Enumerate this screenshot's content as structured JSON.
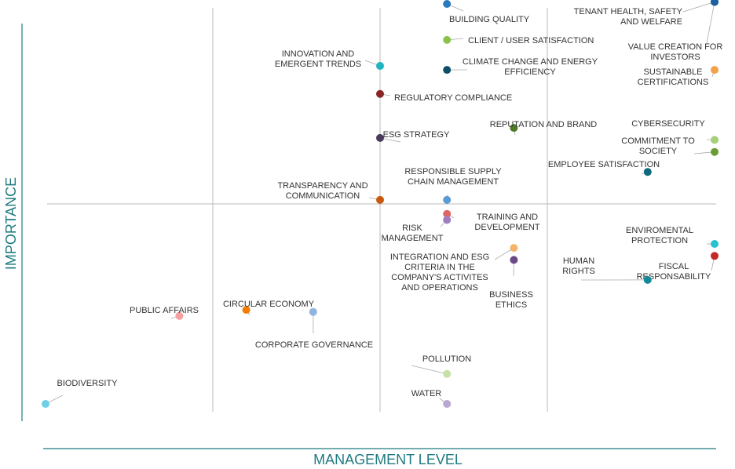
{
  "chart_data": {
    "type": "scatter",
    "xlabel": "MANAGEMENT LEVEL",
    "ylabel": "IMPORTANCE",
    "xlim": [
      0,
      10
    ],
    "ylim": [
      0,
      10
    ],
    "grid": {
      "vertical": [
        2.5,
        5,
        7.5
      ],
      "horizontal": [
        5
      ]
    },
    "axis_color": "#1f7a80",
    "points": [
      {
        "label": [
          "BUILDING QUALITY"
        ],
        "x": 6.0,
        "y": 10.0,
        "color": "#2a7abf"
      },
      {
        "label": [
          "TENANT HEALTH, SAFETY",
          "AND WELFARE"
        ],
        "x": 10.0,
        "y": 10.05,
        "color": "#1a5f9e"
      },
      {
        "label": [
          "CLIENT / USER SATISFACTION"
        ],
        "x": 6.0,
        "y": 9.1,
        "color": "#8bc34a"
      },
      {
        "label": [
          "VALUE CREATION FOR",
          "INVESTORS"
        ],
        "x": 10.0,
        "y": 10.05,
        "color": "#1a5f9e"
      },
      {
        "label": [
          "INNOVATION AND",
          "EMERGENT TRENDS"
        ],
        "x": 5.0,
        "y": 8.45,
        "color": "#1fb5c2"
      },
      {
        "label": [
          "CLIMATE CHANGE AND ENERGY",
          "EFFICIENCY"
        ],
        "x": 6.0,
        "y": 8.35,
        "color": "#0d4f6b"
      },
      {
        "label": [
          "SUSTAINABLE",
          "CERTIFICATIONS"
        ],
        "x": 10.0,
        "y": 8.35,
        "color": "#f5a04a"
      },
      {
        "label": [
          "REGULATORY COMPLIANCE"
        ],
        "x": 5.0,
        "y": 7.75,
        "color": "#8a2525"
      },
      {
        "label": [
          "REPUTATION AND BRAND"
        ],
        "x": 7.0,
        "y": 6.9,
        "color": "#4e7a25"
      },
      {
        "label": [
          "CYBERSECURITY"
        ],
        "x": 10.0,
        "y": 6.6,
        "color": "#a5d07a"
      },
      {
        "label": [
          "ESG STRATEGY"
        ],
        "x": 5.0,
        "y": 6.65,
        "color": "#4a3a5e"
      },
      {
        "label": [
          "COMMITMENT TO",
          "SOCIETY"
        ],
        "x": 10.0,
        "y": 6.3,
        "color": "#6b9e32"
      },
      {
        "label": [
          "EMPLOYEE SATISFACTION"
        ],
        "x": 9.0,
        "y": 5.8,
        "color": "#0e6b7e"
      },
      {
        "label": [
          "RESPONSIBLE SUPPLY",
          "CHAIN MANAGEMENT"
        ],
        "x": 6.0,
        "y": 5.1,
        "color": "#5b9bd5"
      },
      {
        "label": [
          "TRANSPARENCY AND",
          "COMMUNICATION"
        ],
        "x": 5.0,
        "y": 5.1,
        "color": "#c85a0f"
      },
      {
        "label": [
          "TRAINING AND",
          "DEVELOPMENT"
        ],
        "x": 6.0,
        "y": 4.75,
        "color": "#e06666"
      },
      {
        "label": [
          "RISK",
          "MANAGEMENT"
        ],
        "x": 6.0,
        "y": 4.6,
        "color": "#a07cc0"
      },
      {
        "label": [
          "ENVIROMENTAL",
          "PROTECTION"
        ],
        "x": 10.0,
        "y": 4.0,
        "color": "#29c0d0"
      },
      {
        "label": [
          "INTEGRATION AND ESG",
          "CRITERIA IN THE",
          "COMPANY'S ACTIVITES",
          "AND OPERATIONS"
        ],
        "x": 7.0,
        "y": 3.9,
        "color": "#f7b36b"
      },
      {
        "label": [
          "FISCAL",
          "RESPONSABILITY"
        ],
        "x": 10.0,
        "y": 3.7,
        "color": "#c62828"
      },
      {
        "label": [
          "BUSINESS",
          "ETHICS"
        ],
        "x": 7.0,
        "y": 3.6,
        "color": "#6b4a8a"
      },
      {
        "label": [
          "HUMAN",
          "RIGHTS"
        ],
        "x": 9.0,
        "y": 3.1,
        "color": "#138a99"
      },
      {
        "label": [
          "PUBLIC AFFAIRS"
        ],
        "x": 2.0,
        "y": 2.2,
        "color": "#f4a0a0"
      },
      {
        "label": [
          "CIRCULAR ECONOMY"
        ],
        "x": 3.0,
        "y": 2.35,
        "color": "#f57c00"
      },
      {
        "label": [
          "CORPORATE GOVERNANCE"
        ],
        "x": 4.0,
        "y": 2.3,
        "color": "#8fb5dd"
      },
      {
        "label": [
          "POLLUTION"
        ],
        "x": 6.0,
        "y": 0.75,
        "color": "#c5e1a5"
      },
      {
        "label": [
          "BIODIVERSITY"
        ],
        "x": 0.0,
        "y": 0.0,
        "color": "#6ecfe6"
      },
      {
        "label": [
          "WATER"
        ],
        "x": 6.0,
        "y": 0.0,
        "color": "#b8a8cf"
      }
    ]
  }
}
